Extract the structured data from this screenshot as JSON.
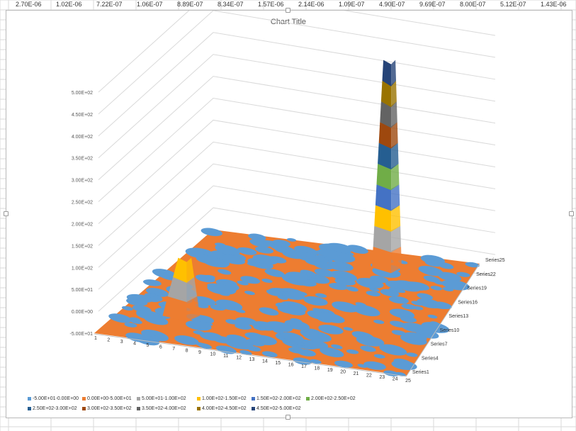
{
  "sheet": {
    "top_row_values": [
      "2.70E-06",
      "1.02E-06",
      "7.22E-07",
      "1.06E-07",
      "8.89E-07",
      "8.34E-07",
      "1.57E-06",
      "2.14E-06",
      "1.09E-07",
      "4.90E-07",
      "9.69E-07",
      "8.00E-07",
      "5.12E-07",
      "1.43E-06"
    ]
  },
  "chart_data": {
    "type": "surface",
    "title": "Chart Title",
    "ylim": [
      -50,
      500
    ],
    "z_ticks": [
      "5.00E+02",
      "4.50E+02",
      "4.00E+02",
      "3.50E+02",
      "3.00E+02",
      "2.50E+02",
      "2.00E+02",
      "1.50E+02",
      "1.00E+02",
      "5.00E+01",
      "0.00E+00",
      "-5.00E+01"
    ],
    "x_categories": [
      "1",
      "2",
      "3",
      "4",
      "5",
      "6",
      "7",
      "8",
      "9",
      "10",
      "11",
      "12",
      "13",
      "14",
      "15",
      "16",
      "17",
      "18",
      "19",
      "20",
      "21",
      "22",
      "23",
      "24",
      "25"
    ],
    "series_labels": [
      "Series1",
      "Series4",
      "Series7",
      "Series10",
      "Series13",
      "Series16",
      "Series19",
      "Series22",
      "Series25"
    ],
    "peaks": [
      {
        "x": 6,
        "series": 7,
        "value": 150
      },
      {
        "x": 18,
        "series": 22,
        "value": 500
      }
    ],
    "legend": [
      {
        "label": "-5.00E+01-0.00E+00",
        "color": "#5b9bd5"
      },
      {
        "label": "0.00E+00-5.00E+01",
        "color": "#ed7d31"
      },
      {
        "label": "5.00E+01-1.00E+02",
        "color": "#a5a5a5"
      },
      {
        "label": "1.00E+02-1.50E+02",
        "color": "#ffc000"
      },
      {
        "label": "1.50E+02-2.00E+02",
        "color": "#4472c4"
      },
      {
        "label": "2.00E+02-2.50E+02",
        "color": "#70ad47"
      },
      {
        "label": "2.50E+02-3.00E+02",
        "color": "#255e91"
      },
      {
        "label": "3.00E+02-3.50E+02",
        "color": "#9e480e"
      },
      {
        "label": "3.50E+02-4.00E+02",
        "color": "#636363"
      },
      {
        "label": "4.00E+02-4.50E+02",
        "color": "#997300"
      },
      {
        "label": "4.50E+02-5.00E+02",
        "color": "#264478"
      }
    ]
  }
}
